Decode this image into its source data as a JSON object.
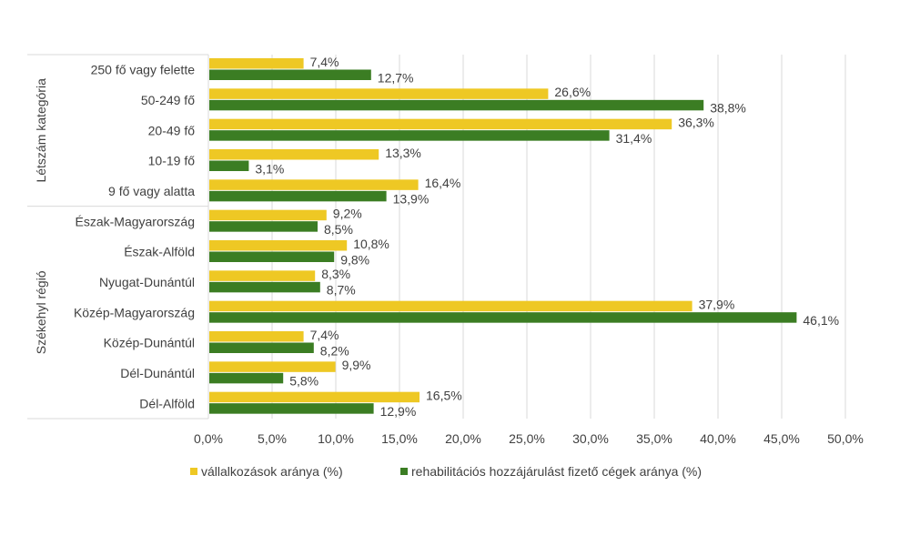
{
  "chart_data": {
    "type": "bar",
    "orientation": "horizontal",
    "groups": [
      {
        "label": "Létszám kategória",
        "categories": [
          "250 fő vagy felette",
          "50-249 fő",
          "20-49 fő",
          "10-19 fő",
          "9 fő vagy alatta"
        ]
      },
      {
        "label": "Székehyl régió",
        "categories": [
          "Észak-Magyarország",
          "Észak-Alföld",
          "Nyugat-Dunántúl",
          "Közép-Magyarország",
          "Közép-Dunántúl",
          "Dél-Dunántúl",
          "Dél-Alföld"
        ]
      }
    ],
    "categories": [
      "250 fő vagy felette",
      "50-249 fő",
      "20-49 fő",
      "10-19 fő",
      "9 fő vagy alatta",
      "Észak-Magyarország",
      "Észak-Alföld",
      "Nyugat-Dunántúl",
      "Közép-Magyarország",
      "Közép-Dunántúl",
      "Dél-Dunántúl",
      "Dél-Alföld"
    ],
    "series": [
      {
        "name": "vállalkozások aránya (%)",
        "color": "#EEC824",
        "values": [
          7.4,
          26.6,
          36.3,
          13.3,
          16.4,
          9.2,
          10.8,
          8.3,
          37.9,
          7.4,
          9.9,
          16.5
        ],
        "labels": [
          "7,4%",
          "26,6%",
          "36,3%",
          "13,3%",
          "16,4%",
          "9,2%",
          "10,8%",
          "8,3%",
          "37,9%",
          "7,4%",
          "9,9%",
          "16,5%"
        ]
      },
      {
        "name": "rehabilitációs hozzájárulást fizető cégek aránya (%)",
        "color": "#3B7D23",
        "values": [
          12.7,
          38.8,
          31.4,
          3.1,
          13.9,
          8.5,
          9.8,
          8.7,
          46.1,
          8.2,
          5.8,
          12.9
        ],
        "labels": [
          "12,7%",
          "38,8%",
          "31,4%",
          "3,1%",
          "13,9%",
          "8,5%",
          "9,8%",
          "8,7%",
          "46,1%",
          "8,2%",
          "5,8%",
          "12,9%"
        ]
      }
    ],
    "xlim": [
      0,
      50
    ],
    "xticks": [
      "0,0%",
      "5,0%",
      "10,0%",
      "15,0%",
      "20,0%",
      "25,0%",
      "30,0%",
      "35,0%",
      "40,0%",
      "45,0%",
      "50,0%"
    ],
    "grid": true,
    "legend": "bottom"
  }
}
